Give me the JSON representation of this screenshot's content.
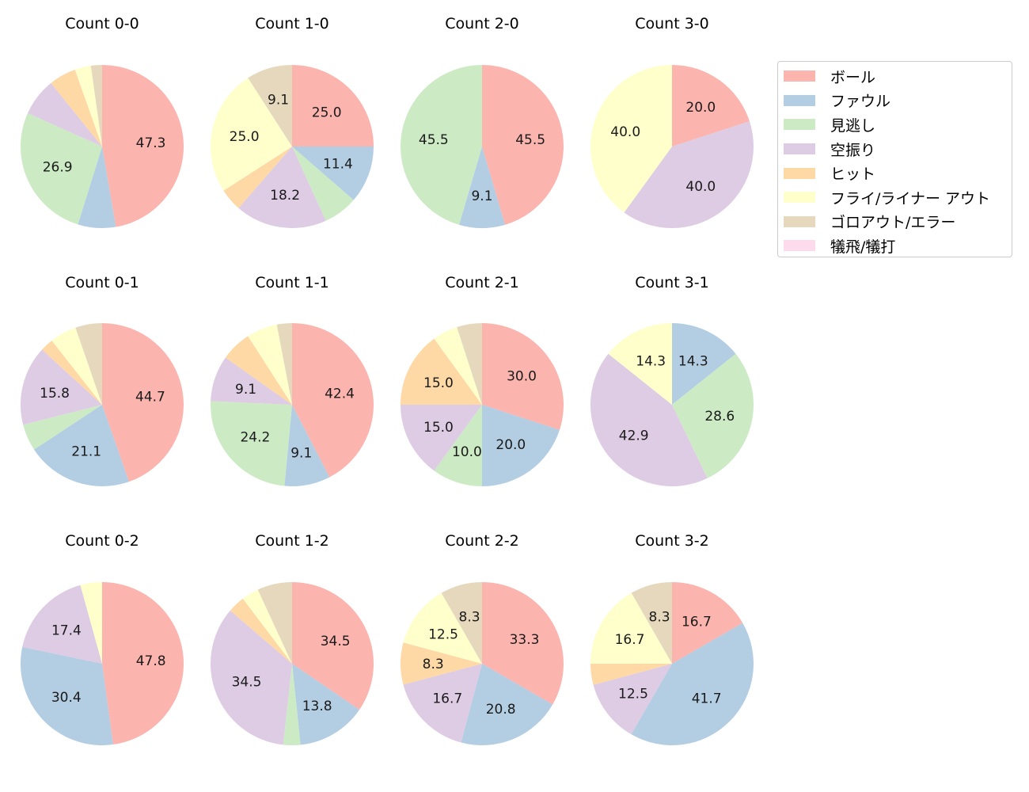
{
  "chart_data": {
    "type": "pie",
    "legend_position": "right",
    "categories": [
      "ボール",
      "ファウル",
      "見逃し",
      "空振り",
      "ヒット",
      "フライ/ライナー アウト",
      "ゴロアウト/エラー",
      "犠飛/犠打"
    ],
    "colors": [
      "#fbb4ae",
      "#b3cde3",
      "#ccebc5",
      "#decbe4",
      "#fed9a6",
      "#ffffcc",
      "#e5d8bd",
      "#fddaec"
    ],
    "pies": [
      {
        "title": "Count 0-0",
        "values": [
          47.3,
          7.5,
          26.9,
          7.5,
          5.4,
          3.2,
          2.2,
          0
        ]
      },
      {
        "title": "Count 1-0",
        "values": [
          25.0,
          11.4,
          6.8,
          18.2,
          4.5,
          25.0,
          9.1,
          0
        ]
      },
      {
        "title": "Count 2-0",
        "values": [
          45.5,
          9.1,
          45.5,
          0,
          0,
          0,
          0,
          0
        ]
      },
      {
        "title": "Count 3-0",
        "values": [
          20.0,
          0,
          0,
          40.0,
          0,
          40.0,
          0,
          0
        ]
      },
      {
        "title": "Count 0-1",
        "values": [
          44.7,
          21.1,
          5.3,
          15.8,
          2.6,
          5.3,
          5.3,
          0
        ]
      },
      {
        "title": "Count 1-1",
        "values": [
          42.4,
          9.1,
          24.2,
          9.1,
          6.1,
          6.1,
          3.0,
          0
        ]
      },
      {
        "title": "Count 2-1",
        "values": [
          30.0,
          20.0,
          10.0,
          15.0,
          15.0,
          5.0,
          5.0,
          0
        ]
      },
      {
        "title": "Count 3-1",
        "values": [
          0,
          14.3,
          28.6,
          42.9,
          0,
          14.3,
          0,
          0
        ]
      },
      {
        "title": "Count 0-2",
        "values": [
          47.8,
          30.4,
          0,
          17.4,
          0,
          4.3,
          0,
          0
        ]
      },
      {
        "title": "Count 1-2",
        "values": [
          34.5,
          13.8,
          3.4,
          34.5,
          3.4,
          3.4,
          6.9,
          0
        ]
      },
      {
        "title": "Count 2-2",
        "values": [
          33.3,
          20.8,
          0,
          16.7,
          8.3,
          12.5,
          8.3,
          0
        ]
      },
      {
        "title": "Count 3-2",
        "values": [
          16.7,
          41.7,
          0,
          12.5,
          4.2,
          16.7,
          8.3,
          0
        ]
      }
    ]
  }
}
